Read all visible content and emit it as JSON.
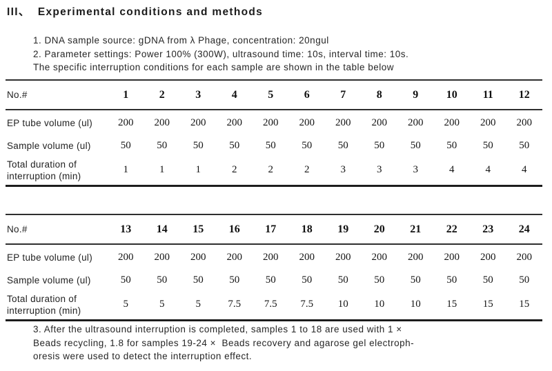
{
  "page": {
    "title": "III、  Experimental conditions and methods",
    "intro_lines": [
      "1. DNA sample source: gDNA from λ Phage, concentration: 20ngul",
      "2. Parameter settings: Power 100% (300W), ultrasound time: 10s, interval time: 10s.",
      "The specific interruption conditions for each sample are shown in the table below"
    ],
    "footer_lines": [
      "3. After the ultrasound interruption is completed, samples 1 to 18 are used with 1 ×",
      "Beads recycling, 1.8 for samples 19-24 ×  Beads recovery and agarose gel electroph-",
      "oresis were used to detect the interruption effect."
    ]
  },
  "tables": [
    {
      "header_label": "No.#",
      "columns": [
        "1",
        "2",
        "3",
        "4",
        "5",
        "6",
        "7",
        "8",
        "9",
        "10",
        "11",
        "12"
      ],
      "rows": [
        {
          "label": "EP tube volume (ul)",
          "values": [
            "200",
            "200",
            "200",
            "200",
            "200",
            "200",
            "200",
            "200",
            "200",
            "200",
            "200",
            "200"
          ]
        },
        {
          "label": "Sample volume (ul)",
          "values": [
            "50",
            "50",
            "50",
            "50",
            "50",
            "50",
            "50",
            "50",
            "50",
            "50",
            "50",
            "50"
          ]
        },
        {
          "label": "Total duration of interruption (min)",
          "label_lines": [
            "Total duration of",
            "interruption (min)"
          ],
          "values": [
            "1",
            "1",
            "1",
            "2",
            "2",
            "2",
            "3",
            "3",
            "3",
            "4",
            "4",
            "4"
          ]
        }
      ]
    },
    {
      "header_label": "No.#",
      "columns": [
        "13",
        "14",
        "15",
        "16",
        "17",
        "18",
        "19",
        "20",
        "21",
        "22",
        "23",
        "24"
      ],
      "rows": [
        {
          "label": "EP tube volume (ul)",
          "values": [
            "200",
            "200",
            "200",
            "200",
            "200",
            "200",
            "200",
            "200",
            "200",
            "200",
            "200",
            "200"
          ]
        },
        {
          "label": "Sample volume (ul)",
          "values": [
            "50",
            "50",
            "50",
            "50",
            "50",
            "50",
            "50",
            "50",
            "50",
            "50",
            "50",
            "50"
          ]
        },
        {
          "label": "Total duration of interruption (min)",
          "label_lines": [
            "Total duration of",
            "interruption (min)"
          ],
          "values": [
            "5",
            "5",
            "5",
            "7.5",
            "7.5",
            "7.5",
            "10",
            "10",
            "10",
            "15",
            "15",
            "15"
          ]
        }
      ]
    }
  ],
  "colors": {
    "text": "#1f1f1f",
    "rule": "#2e2e2e",
    "rule_thick": "#1c1c1c",
    "background": "#ffffff"
  }
}
